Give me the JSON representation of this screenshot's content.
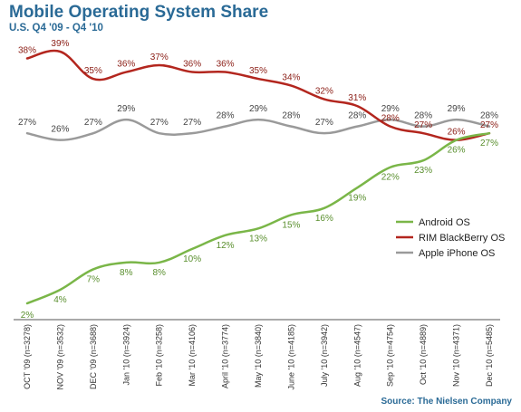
{
  "chart_data": {
    "type": "line",
    "title": "Mobile Operating System Share",
    "subtitle": "U.S. Q4 '09 - Q4 '10",
    "source": "Source: The Nielsen Company",
    "categories": [
      "OCT '09 (n=3278)",
      "NOV '09 (n=3532)",
      "DEC '09 (n=3688)",
      "Jan '10 (n=3924)",
      "Feb '10 (n=3258)",
      "Mar '10 (n=4106)",
      "April '10 (n=3774)",
      "May '10 (n=3840)",
      "June '10 (n=4185)",
      "July '10 (n=3942)",
      "Aug '10 (n=4547)",
      "Sep '10 (n=4754)",
      "Oct '10 (n=4889)",
      "Nov '10 (n=4371)",
      "Dec '10 (n=5485)"
    ],
    "series": [
      {
        "name": "Android OS",
        "color": "#7ab648",
        "values": [
          2,
          4,
          7,
          8,
          8,
          10,
          12,
          13,
          15,
          16,
          19,
          22,
          23,
          26,
          27
        ],
        "labels": [
          "2%",
          "4%",
          "7%",
          "8%",
          "8%",
          "10%",
          "12%",
          "13%",
          "15%",
          "16%",
          "19%",
          "22%",
          "23%",
          "26%",
          "27%"
        ]
      },
      {
        "name": "RIM BlackBerry OS",
        "color": "#b3261e",
        "values": [
          38,
          39,
          35,
          36,
          37,
          36,
          36,
          35,
          34,
          32,
          31,
          28,
          27,
          26,
          27
        ],
        "labels": [
          "38%",
          "39%",
          "35%",
          "36%",
          "37%",
          "36%",
          "36%",
          "35%",
          "34%",
          "32%",
          "31%",
          "28%",
          "27%",
          "26%",
          "27%"
        ]
      },
      {
        "name": "Apple iPhone OS",
        "color": "#9a9a9a",
        "values": [
          27,
          26,
          27,
          29,
          27,
          27,
          28,
          29,
          28,
          27,
          28,
          29,
          28,
          29,
          28
        ],
        "labels": [
          "27%",
          "26%",
          "27%",
          "29%",
          "27%",
          "27%",
          "28%",
          "29%",
          "28%",
          "27%",
          "28%",
          "29%",
          "28%",
          "29%",
          "28%"
        ]
      }
    ],
    "legend_position": "right",
    "grid": false
  }
}
